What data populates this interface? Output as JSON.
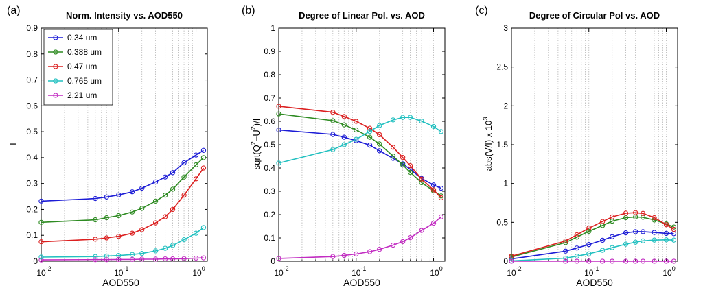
{
  "chart_data": [
    {
      "type": "line",
      "panel_label": "(a)",
      "title": "Norm. Intensity vs. AOD550",
      "xlabel": "AOD550",
      "ylabel": "I",
      "xscale": "log",
      "xlim": [
        0.01,
        1.4
      ],
      "ylim": [
        0,
        0.9
      ],
      "y_ticks": [
        "0",
        "0.1",
        "0.2",
        "0.3",
        "0.4",
        "0.5",
        "0.6",
        "0.7",
        "0.8",
        "0.9"
      ],
      "x_ticks": [
        {
          "base": "10",
          "exp": "-2"
        },
        {
          "base": "10",
          "exp": "-1"
        },
        {
          "base": "10",
          "exp": "0"
        }
      ],
      "legend": "top-left",
      "x": [
        0.01,
        0.05,
        0.07,
        0.1,
        0.15,
        0.2,
        0.3,
        0.4,
        0.5,
        0.7,
        1.0,
        1.25
      ],
      "series": [
        {
          "name": "0.34 um",
          "color": "#1c1cd6",
          "values": [
            0.232,
            0.242,
            0.248,
            0.256,
            0.268,
            0.282,
            0.306,
            0.325,
            0.342,
            0.38,
            0.41,
            0.428
          ]
        },
        {
          "name": "0.388 um",
          "color": "#2e8b22",
          "values": [
            0.15,
            0.16,
            0.168,
            0.176,
            0.19,
            0.204,
            0.232,
            0.255,
            0.278,
            0.325,
            0.372,
            0.4
          ]
        },
        {
          "name": "0.47 um",
          "color": "#dc2020",
          "values": [
            0.075,
            0.085,
            0.09,
            0.096,
            0.108,
            0.122,
            0.148,
            0.172,
            0.2,
            0.255,
            0.318,
            0.36
          ]
        },
        {
          "name": "0.765 um",
          "color": "#22c0c0",
          "values": [
            0.016,
            0.018,
            0.02,
            0.022,
            0.026,
            0.03,
            0.04,
            0.05,
            0.061,
            0.083,
            0.108,
            0.13
          ]
        },
        {
          "name": "2.21 um",
          "color": "#c22cc2",
          "values": [
            0.005,
            0.006,
            0.006,
            0.007,
            0.007,
            0.008,
            0.008,
            0.009,
            0.009,
            0.01,
            0.012,
            0.013
          ]
        }
      ]
    },
    {
      "type": "line",
      "panel_label": "(b)",
      "title": "Degree of Linear Pol. vs. AOD",
      "xlabel": "AOD550",
      "ylabel": "sqrt(Q²+U²)/I",
      "ylabel_parts": {
        "a": "sqrt(Q",
        "b": "+U",
        "c": ")/I",
        "sup": "2"
      },
      "xscale": "log",
      "xlim": [
        0.01,
        1.4
      ],
      "ylim": [
        0,
        1
      ],
      "y_ticks": [
        "0",
        "0.1",
        "0.2",
        "0.3",
        "0.4",
        "0.5",
        "0.6",
        "0.7",
        "0.8",
        "0.9",
        "1"
      ],
      "x_ticks": [
        {
          "base": "10",
          "exp": "-2"
        },
        {
          "base": "10",
          "exp": "-1"
        },
        {
          "base": "10",
          "exp": "0"
        }
      ],
      "x": [
        0.01,
        0.05,
        0.07,
        0.1,
        0.15,
        0.2,
        0.3,
        0.4,
        0.5,
        0.7,
        1.0,
        1.25
      ],
      "series": [
        {
          "name": "0.34 um",
          "color": "#1c1cd6",
          "values": [
            0.563,
            0.544,
            0.532,
            0.517,
            0.498,
            0.474,
            0.441,
            0.418,
            0.394,
            0.355,
            0.327,
            0.313
          ]
        },
        {
          "name": "0.388 um",
          "color": "#2e8b22",
          "values": [
            0.632,
            0.603,
            0.585,
            0.563,
            0.532,
            0.503,
            0.451,
            0.413,
            0.381,
            0.337,
            0.302,
            0.28
          ]
        },
        {
          "name": "0.47 um",
          "color": "#dc2020",
          "values": [
            0.665,
            0.639,
            0.621,
            0.6,
            0.57,
            0.543,
            0.489,
            0.445,
            0.41,
            0.352,
            0.306,
            0.272
          ]
        },
        {
          "name": "0.765 um",
          "color": "#22c0c0",
          "values": [
            0.421,
            0.479,
            0.5,
            0.523,
            0.557,
            0.582,
            0.606,
            0.617,
            0.617,
            0.601,
            0.578,
            0.556
          ]
        },
        {
          "name": "2.21 um",
          "color": "#c22cc2",
          "values": [
            0.012,
            0.02,
            0.025,
            0.031,
            0.041,
            0.051,
            0.069,
            0.084,
            0.101,
            0.132,
            0.163,
            0.19
          ]
        }
      ]
    },
    {
      "type": "line",
      "panel_label": "(c)",
      "title": "Degree of Circular Pol vs. AOD",
      "xlabel": "AOD550",
      "ylabel": "abs(V/I) x 10³",
      "ylabel_parts": {
        "a": "abs(V/I) x 10",
        "sup": "3"
      },
      "xscale": "log",
      "xlim": [
        0.01,
        1.4
      ],
      "ylim": [
        0,
        3
      ],
      "y_ticks": [
        "0",
        "0.5",
        "1",
        "1.5",
        "2",
        "2.5",
        "3"
      ],
      "x_ticks": [
        {
          "base": "10",
          "exp": "-2"
        },
        {
          "base": "10",
          "exp": "-1"
        },
        {
          "base": "10",
          "exp": "0"
        }
      ],
      "x": [
        0.01,
        0.05,
        0.07,
        0.1,
        0.15,
        0.2,
        0.3,
        0.4,
        0.5,
        0.7,
        1.0,
        1.25
      ],
      "series": [
        {
          "name": "0.34 um",
          "color": "#1c1cd6",
          "values": [
            0.03,
            0.13,
            0.17,
            0.215,
            0.27,
            0.315,
            0.365,
            0.38,
            0.38,
            0.37,
            0.358,
            0.355
          ]
        },
        {
          "name": "0.388 um",
          "color": "#2e8b22",
          "values": [
            0.055,
            0.24,
            0.31,
            0.385,
            0.46,
            0.515,
            0.56,
            0.57,
            0.565,
            0.53,
            0.48,
            0.44
          ]
        },
        {
          "name": "0.47 um",
          "color": "#dc2020",
          "values": [
            0.065,
            0.26,
            0.34,
            0.425,
            0.51,
            0.57,
            0.618,
            0.625,
            0.615,
            0.56,
            0.47,
            0.41
          ]
        },
        {
          "name": "0.765 um",
          "color": "#22c0c0",
          "values": [
            0.004,
            0.04,
            0.065,
            0.095,
            0.14,
            0.175,
            0.22,
            0.245,
            0.262,
            0.272,
            0.275,
            0.272
          ]
        },
        {
          "name": "2.21 um",
          "color": "#c22cc2",
          "values": [
            0.0,
            0.0,
            0.0,
            0.0,
            0.0,
            0.0,
            0.0,
            0.0,
            0.0,
            0.0,
            0.0,
            0.0
          ]
        }
      ]
    }
  ]
}
